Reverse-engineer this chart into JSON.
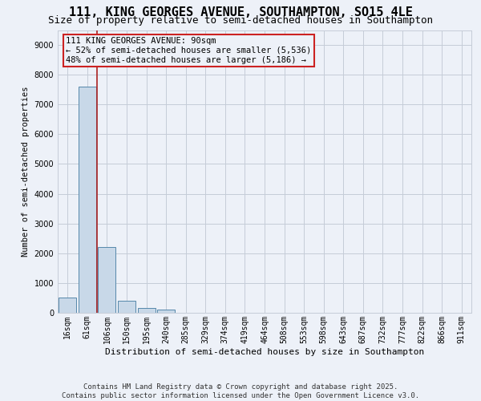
{
  "title": "111, KING GEORGES AVENUE, SOUTHAMPTON, SO15 4LE",
  "subtitle": "Size of property relative to semi-detached houses in Southampton",
  "xlabel": "Distribution of semi-detached houses by size in Southampton",
  "ylabel": "Number of semi-detached properties",
  "footer_line1": "Contains HM Land Registry data © Crown copyright and database right 2025.",
  "footer_line2": "Contains public sector information licensed under the Open Government Licence v3.0.",
  "annotation_line1": "111 KING GEORGES AVENUE: 90sqm",
  "annotation_line2": "← 52% of semi-detached houses are smaller (5,536)",
  "annotation_line3": "48% of semi-detached houses are larger (5,186) →",
  "bar_labels": [
    "16sqm",
    "61sqm",
    "106sqm",
    "150sqm",
    "195sqm",
    "240sqm",
    "285sqm",
    "329sqm",
    "374sqm",
    "419sqm",
    "464sqm",
    "508sqm",
    "553sqm",
    "598sqm",
    "643sqm",
    "687sqm",
    "732sqm",
    "777sqm",
    "822sqm",
    "866sqm",
    "911sqm"
  ],
  "bar_values": [
    500,
    7600,
    2200,
    400,
    150,
    120,
    0,
    0,
    0,
    0,
    0,
    0,
    0,
    0,
    0,
    0,
    0,
    0,
    0,
    0,
    0
  ],
  "bar_color": "#c8d8e8",
  "bar_edge_color": "#5588aa",
  "vline_x": 1.5,
  "vline_color": "#aa2222",
  "ylim_max": 9500,
  "yticks": [
    0,
    1000,
    2000,
    3000,
    4000,
    5000,
    6000,
    7000,
    8000,
    9000
  ],
  "bg_color": "#edf1f8",
  "grid_color": "#c5ccd8",
  "title_fontsize": 11,
  "subtitle_fontsize": 9,
  "ann_fontsize": 7.5,
  "footer_fontsize": 6.5,
  "tick_fontsize": 7,
  "ylabel_fontsize": 7.5,
  "xlabel_fontsize": 8
}
